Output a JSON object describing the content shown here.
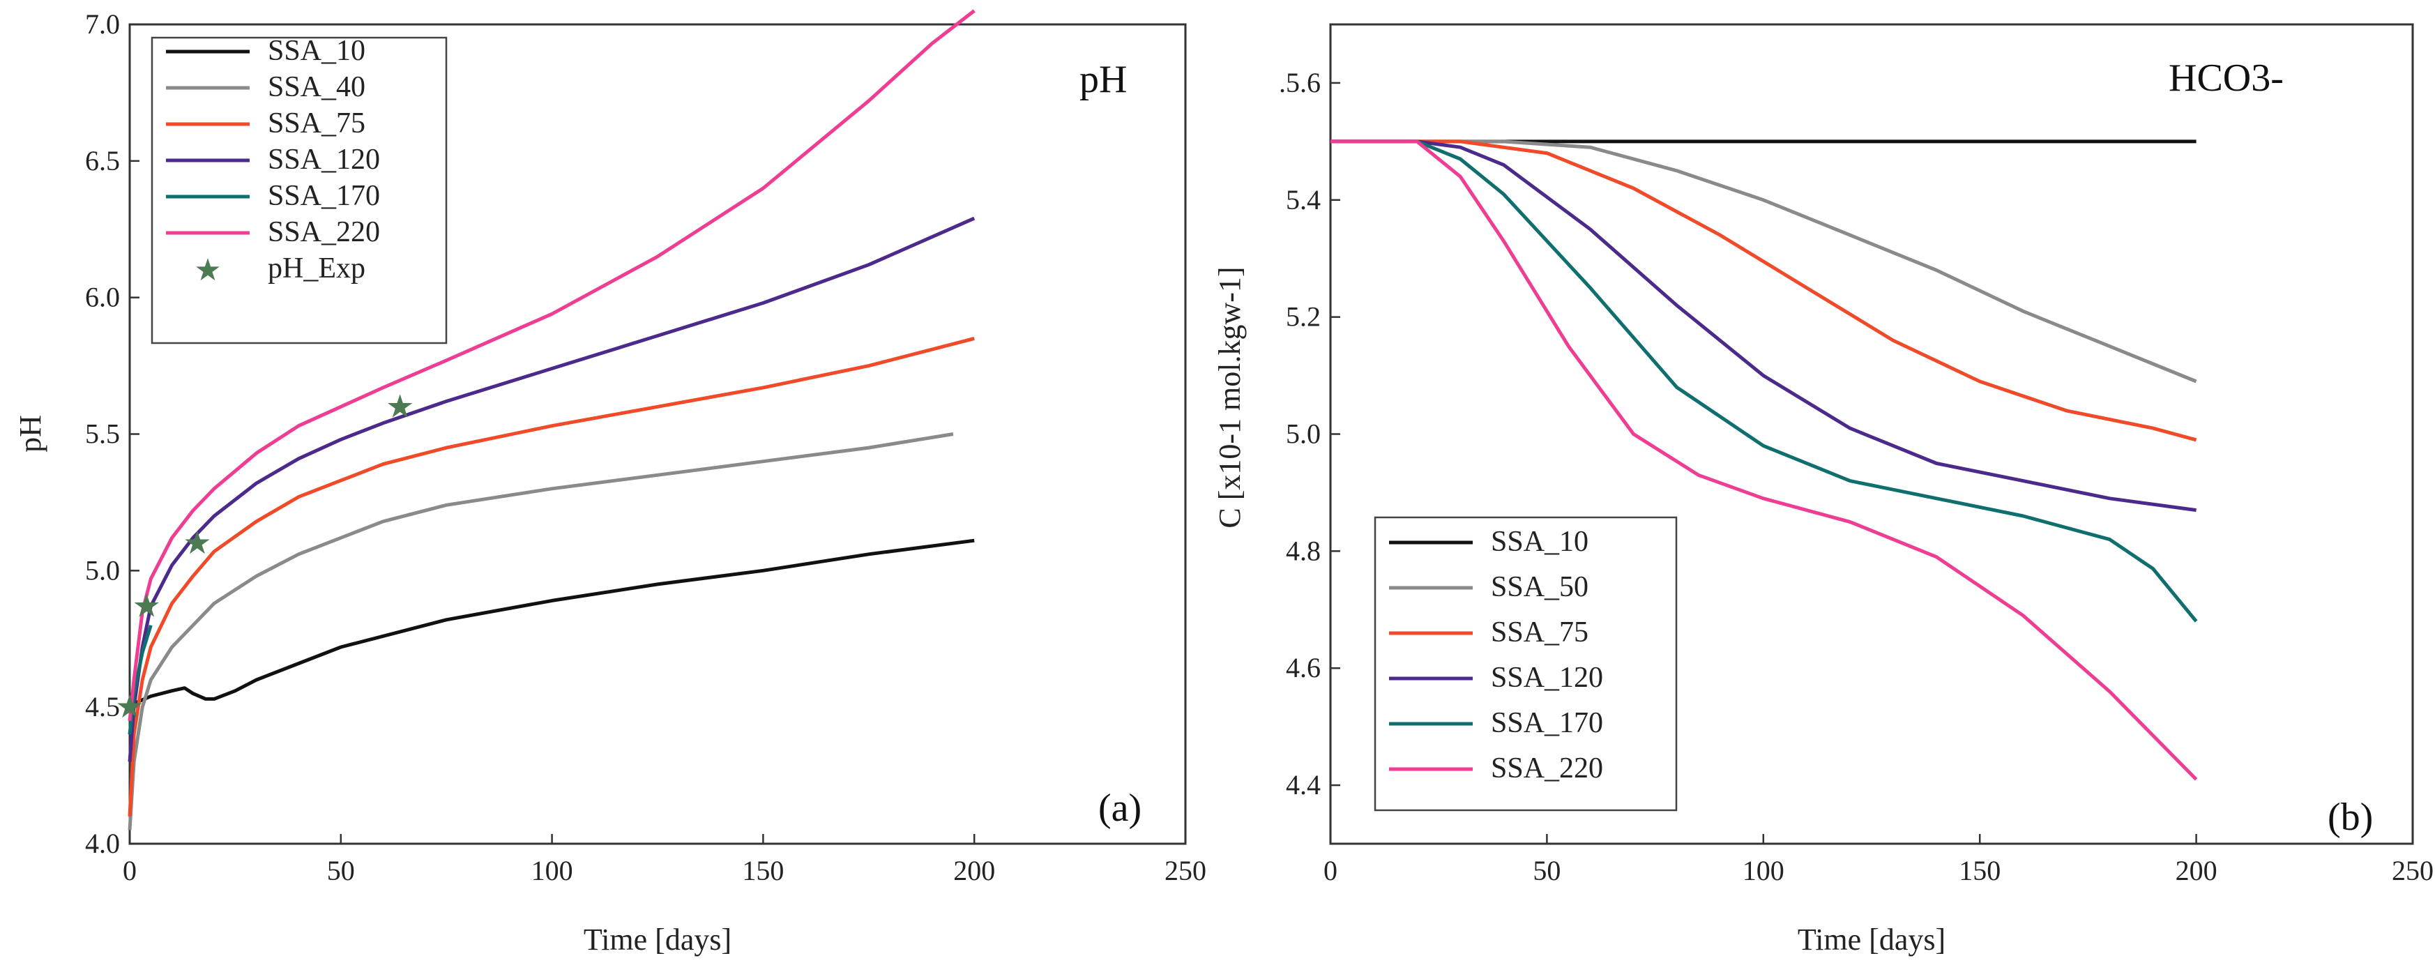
{
  "chart_data": [
    {
      "type": "line",
      "panel_label": "(a)",
      "title": "pH",
      "xlabel": "Time [days]",
      "ylabel": "pH",
      "xlim": [
        0,
        250
      ],
      "ylim": [
        4.0,
        7.0
      ],
      "xticks": [
        "0",
        "50",
        "100",
        "150",
        "200",
        "250"
      ],
      "yticks": [
        "4.0",
        "4.5",
        "5.0",
        "5.5",
        "6.0",
        "6.5",
        "7.0"
      ],
      "legend_position": "top-left",
      "series": [
        {
          "name": "SSA_10",
          "color": "#111111",
          "x": [
            0,
            2,
            5,
            10,
            13,
            15,
            18,
            20,
            25,
            30,
            40,
            50,
            75,
            100,
            125,
            150,
            175,
            200
          ],
          "y": [
            4.5,
            4.52,
            4.54,
            4.56,
            4.57,
            4.55,
            4.53,
            4.53,
            4.56,
            4.6,
            4.66,
            4.72,
            4.82,
            4.89,
            4.95,
            5.0,
            5.06,
            5.11
          ]
        },
        {
          "name": "SSA_40",
          "color": "#8a8a8a",
          "x": [
            0,
            1,
            3,
            5,
            10,
            15,
            20,
            30,
            40,
            50,
            60,
            75,
            100,
            125,
            150,
            175,
            195
          ],
          "y": [
            4.05,
            4.3,
            4.5,
            4.6,
            4.72,
            4.8,
            4.88,
            4.98,
            5.06,
            5.12,
            5.18,
            5.24,
            5.3,
            5.35,
            5.4,
            5.45,
            5.5
          ]
        },
        {
          "name": "SSA_75",
          "color": "#f04a28",
          "x": [
            0,
            1,
            3,
            5,
            10,
            15,
            20,
            30,
            40,
            50,
            60,
            75,
            100,
            125,
            150,
            175,
            200
          ],
          "y": [
            4.1,
            4.4,
            4.6,
            4.72,
            4.88,
            4.98,
            5.07,
            5.18,
            5.27,
            5.33,
            5.39,
            5.45,
            5.53,
            5.6,
            5.67,
            5.75,
            5.85
          ]
        },
        {
          "name": "SSA_120",
          "color": "#4b2a8c",
          "x": [
            0,
            1,
            3,
            5,
            10,
            15,
            20,
            30,
            40,
            50,
            60,
            75,
            100,
            125,
            150,
            175,
            200
          ],
          "y": [
            4.3,
            4.5,
            4.72,
            4.87,
            5.02,
            5.12,
            5.2,
            5.32,
            5.41,
            5.48,
            5.54,
            5.62,
            5.74,
            5.86,
            5.98,
            6.12,
            6.29
          ]
        },
        {
          "name": "SSA_170",
          "color": "#0f6e6e",
          "x": [
            0,
            1,
            3,
            5
          ],
          "y": [
            4.4,
            4.55,
            4.7,
            4.8
          ]
        },
        {
          "name": "SSA_220",
          "color": "#ee3d93",
          "x": [
            0,
            1,
            3,
            5,
            10,
            15,
            20,
            30,
            40,
            50,
            60,
            75,
            100,
            125,
            150,
            175,
            190,
            200
          ],
          "y": [
            4.45,
            4.6,
            4.85,
            4.97,
            5.12,
            5.22,
            5.3,
            5.43,
            5.53,
            5.6,
            5.67,
            5.77,
            5.94,
            6.15,
            6.4,
            6.72,
            6.93,
            7.05
          ]
        }
      ],
      "scatter": {
        "name": "pH_Exp",
        "color": "#4c7a52",
        "x": [
          0,
          4,
          16,
          64
        ],
        "y": [
          4.5,
          4.87,
          5.1,
          5.6
        ]
      }
    },
    {
      "type": "line",
      "panel_label": "(b)",
      "title": "HCO3-",
      "xlabel": "Time [days]",
      "ylabel": "C [x10-1 mol.kgw-1]",
      "xlim": [
        0,
        250
      ],
      "ylim": [
        4.3,
        5.7
      ],
      "xticks": [
        "0",
        "50",
        "100",
        "150",
        "200",
        "250"
      ],
      "yticks": [
        "4.4",
        "4.6",
        "4.8",
        "5.0",
        "5.2",
        "5.4",
        ".5.6"
      ],
      "legend_position": "bottom-left",
      "series": [
        {
          "name": "SSA_10",
          "color": "#111111",
          "x": [
            0,
            200
          ],
          "y": [
            5.5,
            5.5
          ]
        },
        {
          "name": "SSA_50",
          "color": "#8a8a8a",
          "x": [
            0,
            40,
            60,
            80,
            100,
            120,
            140,
            160,
            180,
            200
          ],
          "y": [
            5.5,
            5.5,
            5.49,
            5.45,
            5.4,
            5.34,
            5.28,
            5.21,
            5.15,
            5.09
          ]
        },
        {
          "name": "SSA_75",
          "color": "#f04a28",
          "x": [
            0,
            30,
            50,
            70,
            90,
            110,
            130,
            150,
            170,
            190,
            200
          ],
          "y": [
            5.5,
            5.5,
            5.48,
            5.42,
            5.34,
            5.25,
            5.16,
            5.09,
            5.04,
            5.01,
            4.99
          ]
        },
        {
          "name": "SSA_120",
          "color": "#4b2a8c",
          "x": [
            0,
            20,
            30,
            40,
            60,
            80,
            100,
            120,
            140,
            160,
            180,
            200
          ],
          "y": [
            5.5,
            5.5,
            5.49,
            5.46,
            5.35,
            5.22,
            5.1,
            5.01,
            4.95,
            4.92,
            4.89,
            4.87
          ]
        },
        {
          "name": "SSA_170",
          "color": "#0f6e6e",
          "x": [
            0,
            20,
            30,
            40,
            60,
            80,
            100,
            120,
            140,
            160,
            180,
            190,
            200
          ],
          "y": [
            5.5,
            5.5,
            5.47,
            5.41,
            5.25,
            5.08,
            4.98,
            4.92,
            4.89,
            4.86,
            4.82,
            4.77,
            4.68
          ]
        },
        {
          "name": "SSA_220",
          "color": "#ee3d93",
          "x": [
            0,
            20,
            30,
            40,
            55,
            70,
            85,
            100,
            120,
            140,
            160,
            180,
            200
          ],
          "y": [
            5.5,
            5.5,
            5.44,
            5.33,
            5.15,
            5.0,
            4.93,
            4.89,
            4.85,
            4.79,
            4.69,
            4.56,
            4.41
          ]
        }
      ]
    }
  ]
}
